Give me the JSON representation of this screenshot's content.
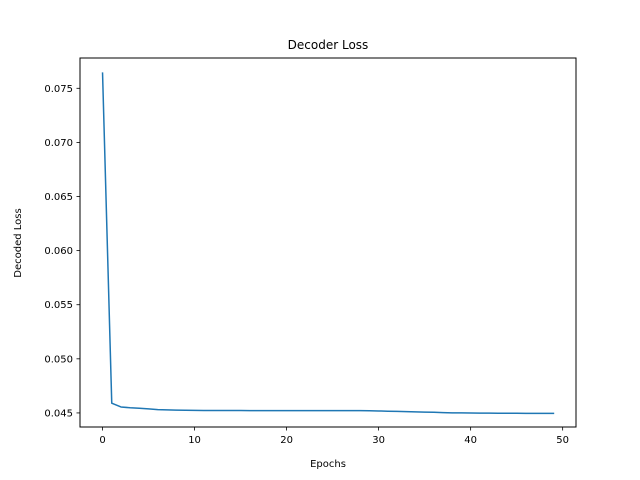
{
  "chart_data": {
    "type": "line",
    "title": "Decoder Loss",
    "xlabel": "Epochs",
    "ylabel": "Decoded Loss",
    "xlim": [
      -2.45,
      51.45
    ],
    "ylim": [
      0.0437,
      0.0778
    ],
    "xticks": [
      0,
      10,
      20,
      30,
      40,
      50
    ],
    "xtick_labels": [
      "0",
      "10",
      "20",
      "30",
      "40",
      "50"
    ],
    "yticks": [
      0.045,
      0.05,
      0.055,
      0.06,
      0.065,
      0.07,
      0.075
    ],
    "ytick_labels": [
      "0.045",
      "0.050",
      "0.055",
      "0.060",
      "0.065",
      "0.070",
      "0.075"
    ],
    "grid": false,
    "series": [
      {
        "color": "#1f77b4",
        "x": [
          0,
          1,
          2,
          3,
          4,
          5,
          6,
          7,
          8,
          9,
          10,
          11,
          12,
          13,
          14,
          15,
          16,
          17,
          18,
          19,
          20,
          21,
          22,
          23,
          24,
          25,
          26,
          27,
          28,
          29,
          30,
          31,
          32,
          33,
          34,
          35,
          36,
          37,
          38,
          39,
          40,
          41,
          42,
          43,
          44,
          45,
          46,
          47,
          48,
          49
        ],
        "values": [
          0.0764,
          0.0459,
          0.04555,
          0.04548,
          0.04543,
          0.04537,
          0.04531,
          0.04528,
          0.04526,
          0.04525,
          0.04524,
          0.04523,
          0.04523,
          0.04522,
          0.04522,
          0.04522,
          0.04521,
          0.04521,
          0.04521,
          0.04521,
          0.04521,
          0.04521,
          0.04521,
          0.04521,
          0.04521,
          0.04521,
          0.04521,
          0.04521,
          0.04521,
          0.0452,
          0.04518,
          0.04516,
          0.04514,
          0.04512,
          0.0451,
          0.04508,
          0.04506,
          0.04503,
          0.04501,
          0.045,
          0.04499,
          0.04498,
          0.04498,
          0.04497,
          0.04497,
          0.04497,
          0.04496,
          0.04496,
          0.04496,
          0.04496
        ]
      }
    ]
  }
}
